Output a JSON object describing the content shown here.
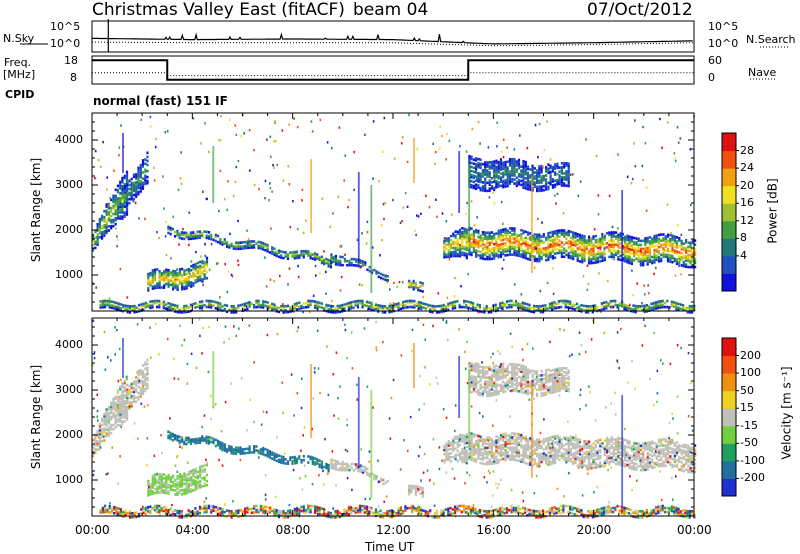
{
  "header": {
    "title": "Christmas Valley East (fitACF)",
    "beam": "beam 04",
    "date": "07/Oct/2012",
    "mode": "normal (fast) 151 IF"
  },
  "left_labels": {
    "nsky": "N.Sky",
    "freq_line1": "Freq.",
    "freq_line2": "[MHz]",
    "cpid": "CPID"
  },
  "right_labels": {
    "nsearch": "N.Search",
    "nave": "Nave"
  },
  "chart_data": [
    {
      "type": "line",
      "panel": "noise",
      "x": [
        "00:00",
        "04:00",
        "08:00",
        "12:00",
        "16:00",
        "20:00",
        "00:00"
      ],
      "left_ticks": [
        "10^5",
        "10^0"
      ],
      "right_ticks": [
        "10^5",
        "10^0"
      ],
      "series": [
        {
          "name": "N.Sky",
          "values": [
            2.2,
            2.0,
            2.1,
            2.0,
            1.3,
            1.5,
            1.8
          ]
        },
        {
          "name": "N.Search",
          "values": [
            1.6,
            1.5,
            1.5,
            1.5,
            1.0,
            1.2,
            1.5
          ]
        }
      ]
    },
    {
      "type": "line",
      "panel": "frequency",
      "x": [
        "00:00",
        "04:00",
        "08:00",
        "12:00",
        "16:00",
        "20:00",
        "00:00"
      ],
      "left_ticks": [
        "18",
        "8"
      ],
      "right_ticks": [
        "60",
        "0"
      ],
      "series": [
        {
          "name": "Freq.",
          "step_hours": [
            0,
            3,
            15,
            24
          ],
          "step_values": [
            16.5,
            9.5,
            16.5,
            16.5
          ]
        },
        {
          "name": "Nave",
          "step_hours": [
            0,
            3,
            15,
            24
          ],
          "step_values": [
            24,
            18,
            24,
            24
          ]
        }
      ]
    },
    {
      "type": "heatmap",
      "panel": "power",
      "ylabel": "Slant Range [km]",
      "yticks": [
        "4000",
        "3000",
        "2000",
        "1000"
      ],
      "ylim": [
        200,
        4600
      ],
      "xlim_hours": [
        0,
        24
      ],
      "colorbar": {
        "label": "Power [dB]",
        "ticks": [
          "28",
          "24",
          "20",
          "16",
          "12",
          "8",
          "4"
        ],
        "colors": [
          "#1010e0",
          "#2050c0",
          "#207878",
          "#40a040",
          "#a0c030",
          "#f0e020",
          "#f0a010",
          "#f05010",
          "#e01010"
        ]
      }
    },
    {
      "type": "heatmap",
      "panel": "velocity",
      "ylabel": "Slant Range [km]",
      "yticks": [
        "4000",
        "3000",
        "2000",
        "1000"
      ],
      "ylim": [
        200,
        4600
      ],
      "xlim_hours": [
        0,
        24
      ],
      "xlabel": "Time UT",
      "xticks": [
        "00:00",
        "04:00",
        "08:00",
        "12:00",
        "16:00",
        "20:00",
        "00:00"
      ],
      "colorbar": {
        "label": "Velocity [m s⁻¹]",
        "ticks": [
          "200",
          "100",
          "50",
          "15",
          "-15",
          "-50",
          "-100",
          "-200"
        ],
        "colors": [
          "#2030d0",
          "#2070a0",
          "#20a060",
          "#70d040",
          "#c0c0b8",
          "#f0d020",
          "#f09010",
          "#f05010",
          "#e01010"
        ]
      }
    }
  ],
  "echo_bands": [
    {
      "t": [
        0.0,
        1.4
      ],
      "r0": [
        1500,
        2400
      ],
      "r1": [
        1900,
        3400
      ],
      "peak": 0.55
    },
    {
      "t": [
        1.0,
        2.2
      ],
      "r0": [
        2400,
        3000
      ],
      "r1": [
        2800,
        3700
      ],
      "peak": 0.35
    },
    {
      "t": [
        2.2,
        4.6
      ],
      "r0": [
        600,
        800
      ],
      "r1": [
        1000,
        1300
      ],
      "peak": 0.75
    },
    {
      "t": [
        3.0,
        9.5
      ],
      "r0": [
        1900,
        1200
      ],
      "r1": [
        2050,
        1380
      ],
      "peak": 0.5
    },
    {
      "t": [
        9.5,
        11.8
      ],
      "r0": [
        1300,
        900
      ],
      "r1": [
        1500,
        1000
      ],
      "peak": 0.4
    },
    {
      "t": [
        12.6,
        13.2
      ],
      "r0": [
        600,
        600
      ],
      "r1": [
        800,
        800
      ],
      "peak": 0.8
    },
    {
      "t": [
        14.0,
        14.9
      ],
      "r0": [
        1400,
        1300
      ],
      "r1": [
        1800,
        2000
      ],
      "peak": 0.7
    },
    {
      "t": [
        15.0,
        24.0
      ],
      "r0": [
        1400,
        1200
      ],
      "r1": [
        2000,
        1800
      ],
      "peak": 0.9
    },
    {
      "t": [
        15.0,
        19.0
      ],
      "r0": [
        2900,
        2900
      ],
      "r1": [
        3600,
        3400
      ],
      "peak": 0.25
    },
    {
      "t": [
        0.3,
        24.0
      ],
      "r0": [
        200,
        200
      ],
      "r1": [
        360,
        360
      ],
      "peak": 0.6
    }
  ]
}
